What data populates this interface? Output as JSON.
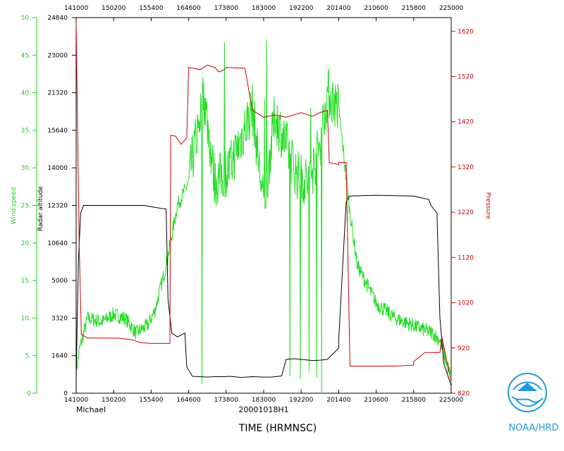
{
  "chart_data": {
    "type": "line",
    "x_ticks": [
      "141000",
      "150200",
      "155400",
      "164600",
      "173800",
      "183000",
      "192200",
      "201400",
      "210600",
      "215800",
      "225000"
    ],
    "xlabel": "TIME (HRMNSC)",
    "storm_label": "Michael",
    "date_label": "20001018H1",
    "agency_label": "NOAA/HRD",
    "axes": {
      "wind": {
        "label": "Wind speed",
        "ticks": [
          "0",
          "5.",
          "10.",
          "15.",
          "20.",
          "25.",
          "30.",
          "35.",
          "40.",
          "45.",
          "50."
        ],
        "ylim": [
          0,
          50
        ]
      },
      "altitude": {
        "label": "Radar altitude",
        "ticks": [
          "0",
          "1640",
          "3320",
          "5000",
          "10640",
          "12320",
          "14000",
          "15640",
          "21320",
          "23000",
          "24840"
        ]
      },
      "pressure": {
        "label": "Pressure",
        "ticks": [
          "820",
          "920",
          "1020",
          "1120",
          "1220",
          "1320",
          "1420",
          "1520",
          "1620"
        ],
        "ylim": [
          820,
          1650
        ]
      }
    },
    "series": [
      {
        "name": "Radar altitude",
        "color": "#000000",
        "scale": "altitude_frac",
        "x": [
          0,
          0.006,
          0.012,
          0.02,
          0.05,
          0.1,
          0.15,
          0.18,
          0.21,
          0.24,
          0.245,
          0.255,
          0.27,
          0.29,
          0.295,
          0.31,
          0.33,
          0.35,
          0.37,
          0.395,
          0.41,
          0.44,
          0.47,
          0.5,
          0.52,
          0.548,
          0.56,
          0.58,
          0.6,
          0.63,
          0.65,
          0.67,
          0.7,
          0.7,
          0.72,
          0.73,
          0.8,
          0.9,
          0.94,
          0.946,
          0.962,
          0.97,
          0.98,
          1.0
        ],
        "y": [
          0.04,
          0.35,
          0.48,
          0.5,
          0.5,
          0.5,
          0.5,
          0.5,
          0.495,
          0.49,
          0.25,
          0.16,
          0.15,
          0.16,
          0.07,
          0.045,
          0.044,
          0.043,
          0.044,
          0.044,
          0.045,
          0.042,
          0.044,
          0.043,
          0.043,
          0.046,
          0.09,
          0.092,
          0.09,
          0.087,
          0.088,
          0.09,
          0.12,
          0.14,
          0.51,
          0.525,
          0.527,
          0.525,
          0.516,
          0.5,
          0.48,
          0.2,
          0.08,
          0.02
        ]
      },
      {
        "name": "Pressure",
        "color": "#cc0000",
        "scale": "pressure",
        "x": [
          0.0,
          0.004,
          0.008,
          0.014,
          0.03,
          0.07,
          0.11,
          0.15,
          0.17,
          0.2,
          0.24,
          0.25,
          0.252,
          0.265,
          0.28,
          0.295,
          0.3,
          0.33,
          0.35,
          0.37,
          0.38,
          0.395,
          0.4,
          0.45,
          0.47,
          0.5,
          0.53,
          0.56,
          0.6,
          0.63,
          0.65,
          0.67,
          0.675,
          0.7,
          0.7,
          0.72,
          0.73,
          0.85,
          0.9,
          0.9,
          0.93,
          0.97,
          0.975,
          1.0
        ],
        "y": [
          1640,
          1400,
          1150,
          950,
          942,
          942,
          942,
          938,
          932,
          930,
          930,
          930,
          1390,
          1388,
          1370,
          1385,
          1540,
          1535,
          1545,
          1540,
          1530,
          1535,
          1540,
          1538,
          1445,
          1430,
          1435,
          1430,
          1440,
          1432,
          1440,
          1445,
          1330,
          1325,
          1330,
          1330,
          880,
          880,
          882,
          890,
          910,
          910,
          945,
          845
        ]
      }
    ],
    "wind_anchors": {
      "x": [
        0,
        0.01,
        0.03,
        0.07,
        0.1,
        0.13,
        0.16,
        0.19,
        0.21,
        0.24,
        0.27,
        0.3,
        0.34,
        0.37,
        0.41,
        0.44,
        0.47,
        0.5,
        0.53,
        0.56,
        0.59,
        0.62,
        0.65,
        0.67,
        0.7,
        0.73,
        0.75,
        0.8,
        0.85,
        0.9,
        0.95,
        0.97,
        1.0
      ],
      "y": [
        3,
        6,
        10,
        9.5,
        10.5,
        10,
        8,
        9,
        11,
        17,
        25,
        28,
        40,
        28,
        30,
        34,
        38,
        25,
        37,
        33,
        29,
        28,
        33,
        40,
        38,
        24,
        17,
        12,
        10,
        9,
        8,
        7,
        2
      ]
    }
  }
}
